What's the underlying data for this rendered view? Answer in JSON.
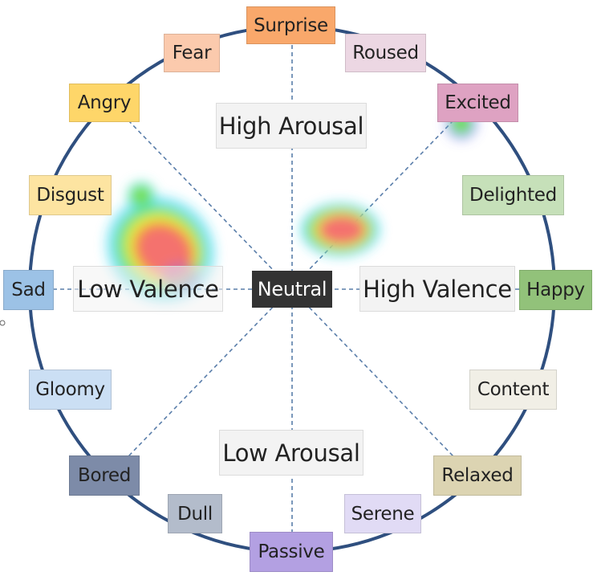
{
  "diagram": {
    "axes": {
      "high_arousal": "High Arousal",
      "low_arousal": "Low Arousal",
      "low_valence": "Low Valence",
      "high_valence": "High Valence",
      "center": "Neutral"
    },
    "emotions": [
      {
        "key": "surprise",
        "label": "Surprise",
        "color": "#f9a86b"
      },
      {
        "key": "roused",
        "label": "Roused",
        "color": "#ecd7e3"
      },
      {
        "key": "excited",
        "label": "Excited",
        "color": "#dea2c2"
      },
      {
        "key": "delighted",
        "label": "Delighted",
        "color": "#c6e0b9"
      },
      {
        "key": "happy",
        "label": "Happy",
        "color": "#92c27a"
      },
      {
        "key": "content",
        "label": "Content",
        "color": "#f1efe6"
      },
      {
        "key": "relaxed",
        "label": "Relaxed",
        "color": "#dcd4b2"
      },
      {
        "key": "serene",
        "label": "Serene",
        "color": "#e1dbf5"
      },
      {
        "key": "passive",
        "label": "Passive",
        "color": "#b3a0e2"
      },
      {
        "key": "dull",
        "label": "Dull",
        "color": "#b3bccb"
      },
      {
        "key": "bored",
        "label": "Bored",
        "color": "#7d8ba8"
      },
      {
        "key": "gloomy",
        "label": "Gloomy",
        "color": "#cbdff4"
      },
      {
        "key": "sad",
        "label": "Sad",
        "color": "#9cc2e6"
      },
      {
        "key": "disgust",
        "label": "Disgust",
        "color": "#fde4a1"
      },
      {
        "key": "angry",
        "label": "Angry",
        "color": "#fed669"
      },
      {
        "key": "fear",
        "label": "Fear",
        "color": "#fbcaad"
      }
    ],
    "colors": {
      "circle": "#2f4f7f",
      "spoke": "#5a7eaa",
      "neutral_bg": "#333333",
      "axis_bg": "#f3f3f3"
    }
  }
}
